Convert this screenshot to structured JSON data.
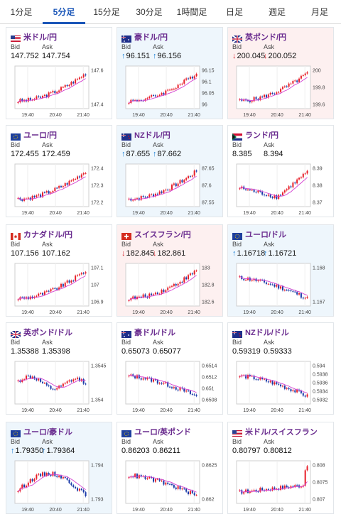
{
  "tabs": [
    {
      "label": "1分足",
      "active": false
    },
    {
      "label": "5分足",
      "active": true
    },
    {
      "label": "15分足",
      "active": false
    },
    {
      "label": "30分足",
      "active": false
    },
    {
      "label": "1時間足",
      "active": false
    },
    {
      "label": "日足",
      "active": false
    },
    {
      "label": "週足",
      "active": false
    },
    {
      "label": "月足",
      "active": false
    }
  ],
  "bid_label": "Bid",
  "ask_label": "Ask",
  "x_ticks": [
    "19:40",
    "20:40",
    "21:40"
  ],
  "colors": {
    "up_candle": "#e8202a",
    "down_candle": "#1a3aa8",
    "ma_line": "#d43fd0",
    "ma_line2": "#70a8d0"
  },
  "pairs": [
    {
      "name": "米ドル/円",
      "flag": "us-flag",
      "trend": "none",
      "bid": "147.752",
      "ask": "147.754",
      "yticks": [
        "147.6",
        "147.4"
      ],
      "shape": "rise"
    },
    {
      "name": "豪ドル/円",
      "flag": "au-flag",
      "trend": "up",
      "bid": "96.151",
      "ask": "96.156",
      "yticks": [
        "96.15",
        "96.1",
        "96.05",
        "96"
      ],
      "shape": "rise"
    },
    {
      "name": "英ポンド/円",
      "flag": "gb-flag",
      "trend": "down",
      "bid": "200.045",
      "ask": "200.052",
      "yticks": [
        "200",
        "199.8",
        "199.6"
      ],
      "shape": "rise"
    },
    {
      "name": "ユーロ/円",
      "flag": "eu-flag",
      "trend": "none",
      "bid": "172.455",
      "ask": "172.459",
      "yticks": [
        "172.4",
        "172.3",
        "172.2"
      ],
      "shape": "rise"
    },
    {
      "name": "NZドル/円",
      "flag": "nz-flag",
      "trend": "up",
      "bid": "87.655",
      "ask": "87.662",
      "yticks": [
        "87.65",
        "87.6",
        "87.55"
      ],
      "shape": "rise"
    },
    {
      "name": "ランド/円",
      "flag": "za-flag",
      "trend": "none",
      "bid": "8.385",
      "ask": "8.394",
      "yticks": [
        "8.39",
        "8.38",
        "8.37"
      ],
      "shape": "dip-rise"
    },
    {
      "name": "カナダドル/円",
      "flag": "ca-flag",
      "trend": "none",
      "bid": "107.156",
      "ask": "107.162",
      "yticks": [
        "107.1",
        "107",
        "106.9"
      ],
      "shape": "rise"
    },
    {
      "name": "スイスフラン/円",
      "flag": "ch-flag",
      "trend": "down",
      "bid": "182.845",
      "ask": "182.861",
      "yticks": [
        "183",
        "182.8",
        "182.6"
      ],
      "shape": "rise"
    },
    {
      "name": "ユーロ/ドル",
      "flag": "eu-flag",
      "trend": "up",
      "bid": "1.16718",
      "ask": "1.16721",
      "yticks": [
        "1.168",
        "1.167"
      ],
      "shape": "fall"
    },
    {
      "name": "英ポンド/ドル",
      "flag": "gb-flag",
      "trend": "none",
      "bid": "1.35388",
      "ask": "1.35398",
      "yticks": [
        "1.3545",
        "1.354"
      ],
      "shape": "choppy"
    },
    {
      "name": "豪ドル/ドル",
      "flag": "au-flag",
      "trend": "none",
      "bid": "0.65073",
      "ask": "0.65077",
      "yticks": [
        "0.6514",
        "0.6512",
        "0.651",
        "0.6508"
      ],
      "shape": "fall"
    },
    {
      "name": "NZドル/ドル",
      "flag": "nz-flag",
      "trend": "none",
      "bid": "0.59319",
      "ask": "0.59333",
      "yticks": [
        "0.594",
        "0.5938",
        "0.5936",
        "0.5934",
        "0.5932"
      ],
      "shape": "fall"
    },
    {
      "name": "ユーロ/豪ドル",
      "flag": "eu-flag",
      "trend": "up",
      "bid": "1.79350",
      "ask": "1.79364",
      "yticks": [
        "1.794",
        "1.793"
      ],
      "shape": "hump"
    },
    {
      "name": "ユーロ/英ポンド",
      "flag": "eu-flag",
      "trend": "none",
      "bid": "0.86203",
      "ask": "0.86211",
      "yticks": [
        "0.8625",
        "0.862"
      ],
      "shape": "fall"
    },
    {
      "name": "米ドル/スイスフラン",
      "flag": "us-flag",
      "trend": "none",
      "bid": "0.80797",
      "ask": "0.80812",
      "yticks": [
        "0.808",
        "0.8075",
        "0.807"
      ],
      "shape": "spike"
    }
  ]
}
